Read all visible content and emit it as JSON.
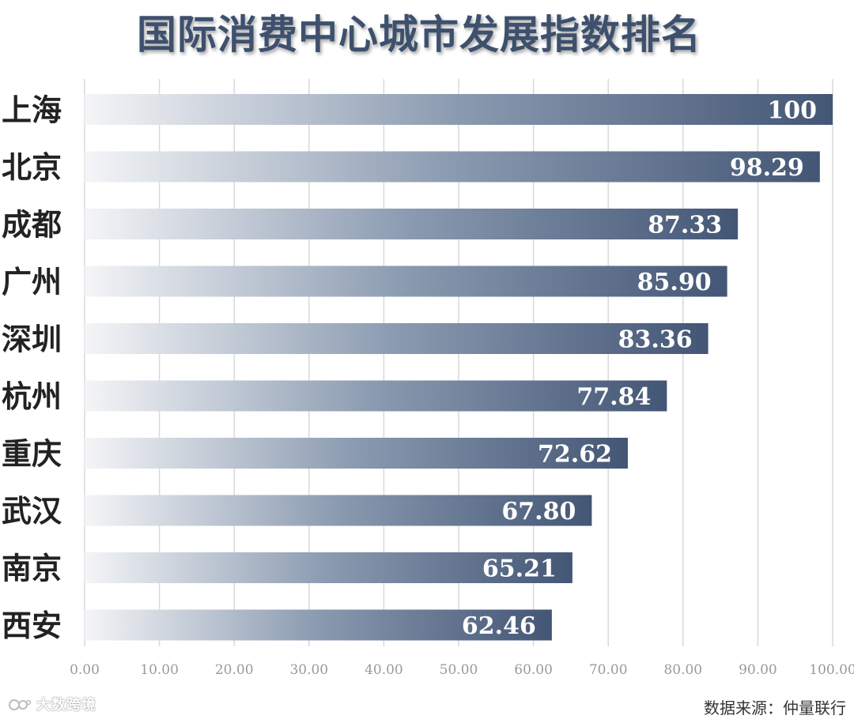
{
  "title": "国际消费中心城市发展指数排名",
  "source": "数据来源：仲量联行",
  "watermark": "大数跨境",
  "chart_data": {
    "type": "bar",
    "orientation": "horizontal",
    "title": "国际消费中心城市发展指数排名",
    "categories": [
      "上海",
      "北京",
      "成都",
      "广州",
      "深圳",
      "杭州",
      "重庆",
      "武汉",
      "南京",
      "西安"
    ],
    "values": [
      100,
      98.29,
      87.33,
      85.9,
      83.36,
      77.84,
      72.62,
      67.8,
      65.21,
      62.46
    ],
    "value_labels": [
      "100",
      "98.29",
      "87.33",
      "85.90",
      "83.36",
      "77.84",
      "72.62",
      "67.80",
      "65.21",
      "62.46"
    ],
    "xlim": [
      0,
      100
    ],
    "xticks": [
      0,
      10,
      20,
      30,
      40,
      50,
      60,
      70,
      80,
      90,
      100
    ],
    "xtick_labels": [
      "0.00",
      "10.00",
      "20.00",
      "30.00",
      "40.00",
      "50.00",
      "60.00",
      "70.00",
      "80.00",
      "90.00",
      "100.00"
    ],
    "grid": true,
    "legend": "none",
    "colors": {
      "bar_start": "#f4f5f7",
      "bar_end": "#435675",
      "title": "#3d506d",
      "grid": "#d9d9d9",
      "tick_label": "#9a9a9a",
      "category_label": "#222222",
      "value_label": "#ffffff"
    }
  }
}
